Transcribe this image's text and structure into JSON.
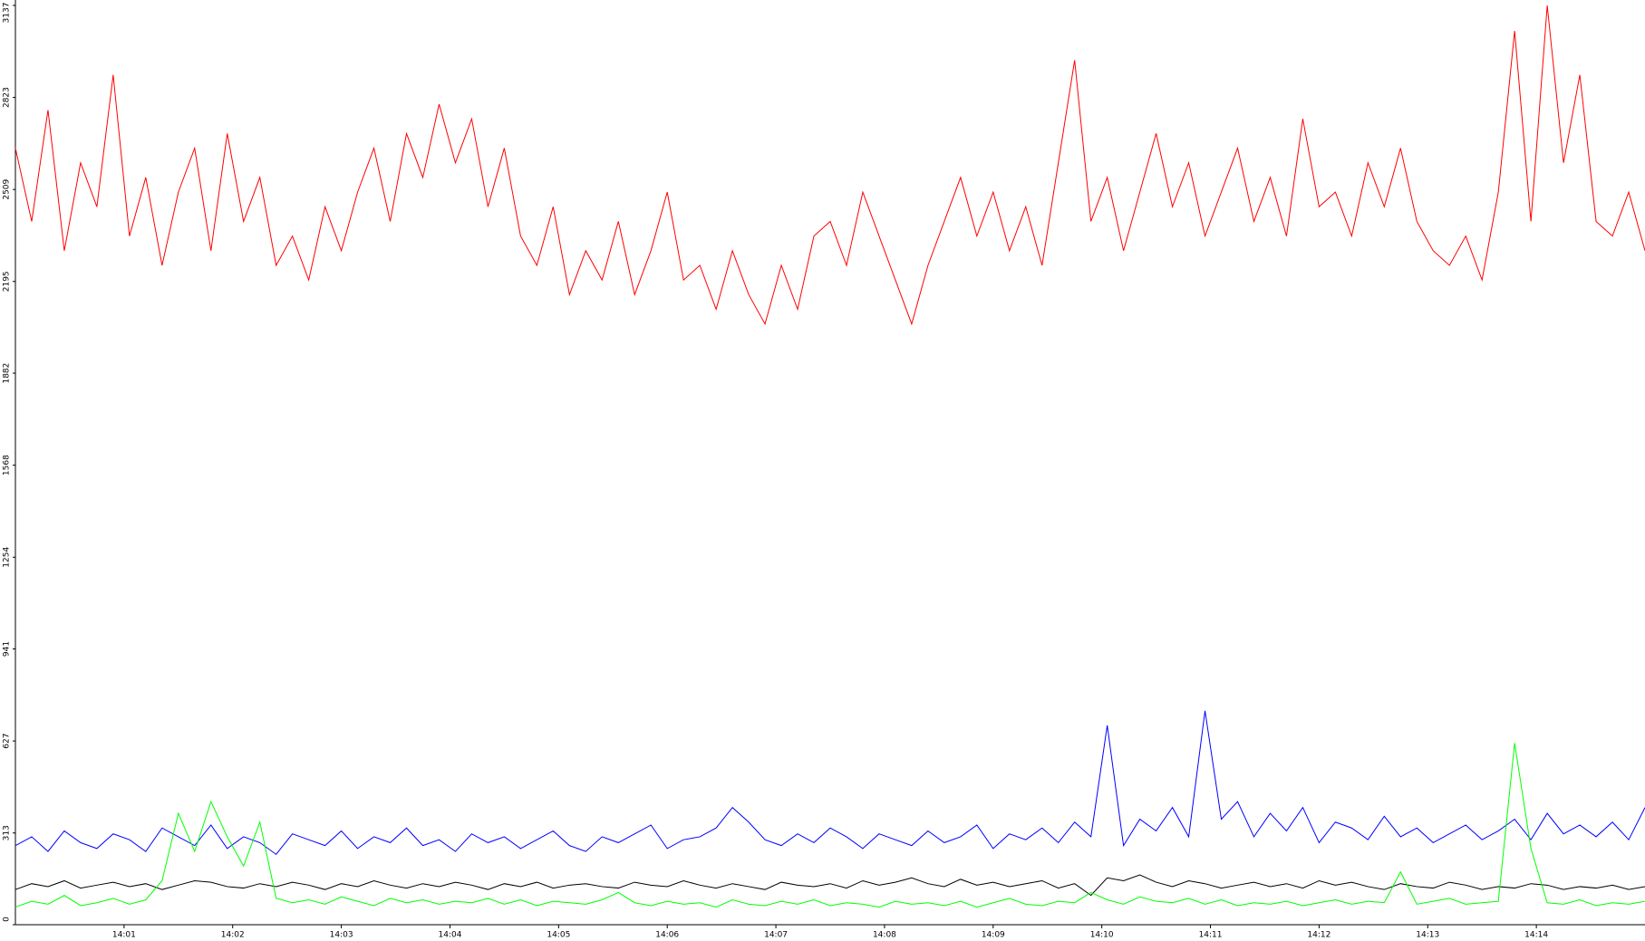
{
  "chart_data": {
    "type": "line",
    "x": [
      0,
      0.15,
      0.3,
      0.45,
      0.6,
      0.75,
      0.9,
      1.05,
      1.2,
      1.35,
      1.5,
      1.65,
      1.8,
      1.95,
      2.1,
      2.25,
      2.4,
      2.55,
      2.7,
      2.85,
      3,
      3.15,
      3.3,
      3.45,
      3.6,
      3.75,
      3.9,
      4.05,
      4.2,
      4.35,
      4.5,
      4.65,
      4.8,
      4.95,
      5.1,
      5.25,
      5.4,
      5.55,
      5.7,
      5.85,
      6,
      6.15,
      6.3,
      6.45,
      6.6,
      6.75,
      6.9,
      7.05,
      7.2,
      7.35,
      7.5,
      7.65,
      7.8,
      7.95,
      8.1,
      8.25,
      8.4,
      8.55,
      8.7,
      8.85,
      9,
      9.15,
      9.3,
      9.45,
      9.6,
      9.75,
      9.9,
      10.05,
      10.2,
      10.35,
      10.5,
      10.65,
      10.8,
      10.95,
      11.1,
      11.25,
      11.4,
      11.55,
      11.7,
      11.85,
      12,
      12.15,
      12.3,
      12.45,
      12.6,
      12.75,
      12.9,
      13.05,
      13.2,
      13.35,
      13.5,
      13.65,
      13.8,
      13.95,
      14.1,
      14.25,
      14.4,
      14.55,
      14.7,
      14.85,
      15
    ],
    "series": [
      {
        "color": "#ff0000",
        "values": [
          2650,
          2400,
          2780,
          2300,
          2600,
          2450,
          2900,
          2350,
          2550,
          2250,
          2500,
          2650,
          2300,
          2700,
          2400,
          2550,
          2250,
          2350,
          2200,
          2450,
          2300,
          2500,
          2650,
          2400,
          2700,
          2550,
          2800,
          2600,
          2750,
          2450,
          2650,
          2350,
          2250,
          2450,
          2150,
          2300,
          2200,
          2400,
          2150,
          2300,
          2500,
          2200,
          2250,
          2100,
          2300,
          2150,
          2050,
          2250,
          2100,
          2350,
          2400,
          2250,
          2500,
          2350,
          2200,
          2050,
          2250,
          2400,
          2550,
          2350,
          2500,
          2300,
          2450,
          2250,
          2600,
          2950,
          2400,
          2550,
          2300,
          2500,
          2700,
          2450,
          2600,
          2350,
          2500,
          2650,
          2400,
          2550,
          2350,
          2750,
          2450,
          2500,
          2350,
          2600,
          2450,
          2650,
          2400,
          2300,
          2250,
          2350,
          2200,
          2500,
          3050,
          2400,
          3137,
          2600,
          2900,
          2400,
          2350,
          2500,
          2300
        ]
      },
      {
        "color": "#0000ff",
        "values": [
          270,
          300,
          250,
          320,
          280,
          260,
          310,
          290,
          250,
          330,
          300,
          270,
          340,
          260,
          300,
          280,
          240,
          310,
          290,
          270,
          320,
          260,
          300,
          280,
          330,
          270,
          290,
          250,
          310,
          280,
          300,
          260,
          290,
          320,
          270,
          250,
          300,
          280,
          310,
          340,
          260,
          290,
          300,
          330,
          400,
          350,
          290,
          270,
          310,
          280,
          330,
          300,
          260,
          310,
          290,
          270,
          320,
          280,
          300,
          340,
          260,
          310,
          290,
          330,
          280,
          350,
          300,
          680,
          270,
          360,
          320,
          400,
          300,
          730,
          360,
          420,
          300,
          380,
          320,
          400,
          280,
          350,
          330,
          290,
          370,
          300,
          330,
          280,
          310,
          340,
          290,
          320,
          360,
          290,
          380,
          310,
          340,
          300,
          350,
          290,
          400
        ]
      },
      {
        "color": "#000000",
        "values": [
          120,
          140,
          130,
          150,
          125,
          135,
          145,
          130,
          140,
          120,
          135,
          150,
          145,
          130,
          125,
          140,
          130,
          145,
          135,
          120,
          140,
          130,
          150,
          135,
          125,
          140,
          130,
          145,
          135,
          120,
          140,
          130,
          145,
          125,
          135,
          140,
          130,
          125,
          145,
          135,
          130,
          150,
          135,
          125,
          140,
          130,
          120,
          145,
          135,
          130,
          140,
          125,
          150,
          135,
          145,
          160,
          140,
          130,
          155,
          135,
          145,
          130,
          140,
          150,
          125,
          140,
          100,
          160,
          150,
          170,
          145,
          130,
          150,
          140,
          125,
          135,
          145,
          130,
          140,
          125,
          150,
          135,
          145,
          130,
          120,
          140,
          130,
          125,
          145,
          135,
          120,
          130,
          125,
          140,
          135,
          120,
          130,
          125,
          135,
          120,
          130
        ]
      },
      {
        "color": "#00ff00",
        "values": [
          60,
          80,
          70,
          100,
          65,
          75,
          90,
          70,
          85,
          150,
          380,
          250,
          420,
          300,
          200,
          350,
          90,
          75,
          85,
          70,
          95,
          80,
          65,
          90,
          75,
          85,
          70,
          80,
          75,
          90,
          70,
          85,
          65,
          80,
          75,
          70,
          85,
          110,
          75,
          65,
          80,
          70,
          75,
          60,
          85,
          70,
          65,
          80,
          70,
          85,
          65,
          75,
          70,
          60,
          80,
          70,
          75,
          65,
          80,
          60,
          75,
          90,
          70,
          65,
          80,
          75,
          110,
          85,
          70,
          95,
          80,
          75,
          90,
          70,
          85,
          65,
          75,
          70,
          80,
          65,
          75,
          85,
          70,
          80,
          75,
          180,
          70,
          80,
          90,
          70,
          75,
          80,
          620,
          260,
          75,
          70,
          85,
          65,
          75,
          70,
          80
        ]
      }
    ],
    "xlim": [
      0,
      15
    ],
    "xticks": [
      {
        "value": 1,
        "label": "14:01"
      },
      {
        "value": 2,
        "label": "14:02"
      },
      {
        "value": 3,
        "label": "14:03"
      },
      {
        "value": 4,
        "label": "14:04"
      },
      {
        "value": 5,
        "label": "14:05"
      },
      {
        "value": 6,
        "label": "14:06"
      },
      {
        "value": 7,
        "label": "14:07"
      },
      {
        "value": 8,
        "label": "14:08"
      },
      {
        "value": 9,
        "label": "14:09"
      },
      {
        "value": 10,
        "label": "14:10"
      },
      {
        "value": 11,
        "label": "14:11"
      },
      {
        "value": 12,
        "label": "14:12"
      },
      {
        "value": 13,
        "label": "14:13"
      },
      {
        "value": 14,
        "label": "14:14"
      }
    ],
    "ylim": [
      0,
      3137
    ],
    "yticks": [
      0,
      313,
      627,
      941,
      1254,
      1568,
      1882,
      2195,
      2509,
      2823,
      3137
    ]
  }
}
